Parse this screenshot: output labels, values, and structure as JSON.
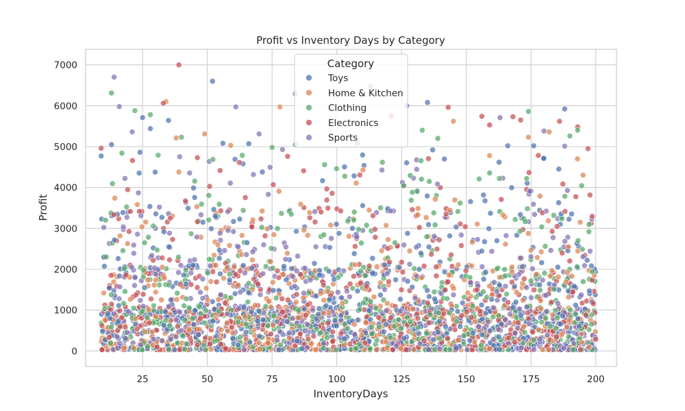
{
  "chart_data": {
    "type": "scatter",
    "title": "Profit vs Inventory Days by Category",
    "xlabel": "InventoryDays",
    "ylabel": "Profit",
    "xlim": [
      3,
      208
    ],
    "ylim": [
      -380,
      7380
    ],
    "x_ticks": [
      25,
      50,
      75,
      100,
      125,
      150,
      175,
      200
    ],
    "y_ticks": [
      0,
      1000,
      2000,
      3000,
      4000,
      5000,
      6000,
      7000
    ],
    "grid": true,
    "legend_title": "Category",
    "legend_position": "top-center",
    "series": [
      {
        "name": "Toys",
        "color": "#4c72b0"
      },
      {
        "name": "Home & Kitchen",
        "color": "#dd8452"
      },
      {
        "name": "Clothing",
        "color": "#55a868"
      },
      {
        "name": "Electronics",
        "color": "#c44e52"
      },
      {
        "name": "Sports",
        "color": "#8172b3"
      }
    ],
    "highlight_points": [
      {
        "series": "Electronics",
        "x": 39,
        "y": 7000
      },
      {
        "series": "Sports",
        "x": 14,
        "y": 6700
      },
      {
        "series": "Toys",
        "x": 52,
        "y": 6600
      },
      {
        "series": "Sports",
        "x": 113,
        "y": 6470
      },
      {
        "series": "Clothing",
        "x": 13,
        "y": 6310
      },
      {
        "series": "Sports",
        "x": 84,
        "y": 6290
      },
      {
        "series": "Home & Kitchen",
        "x": 34,
        "y": 6100
      },
      {
        "series": "Toys",
        "x": 135,
        "y": 6080
      },
      {
        "series": "Electronics",
        "x": 33,
        "y": 6060
      },
      {
        "series": "Toys",
        "x": 127,
        "y": 6000
      },
      {
        "series": "Sports",
        "x": 16,
        "y": 5980
      },
      {
        "series": "Home & Kitchen",
        "x": 78,
        "y": 5970
      },
      {
        "series": "Sports",
        "x": 61,
        "y": 5970
      },
      {
        "series": "Electronics",
        "x": 143,
        "y": 5960
      },
      {
        "series": "Toys",
        "x": 188,
        "y": 5920
      },
      {
        "series": "Clothing",
        "x": 22,
        "y": 5880
      },
      {
        "series": "Clothing",
        "x": 174,
        "y": 5860
      },
      {
        "series": "Clothing",
        "x": 28,
        "y": 5780
      },
      {
        "series": "Electronics",
        "x": 156,
        "y": 5740
      },
      {
        "series": "Electronics",
        "x": 121,
        "y": 5740
      },
      {
        "series": "Electronics",
        "x": 168,
        "y": 5730
      },
      {
        "series": "Sports",
        "x": 163,
        "y": 5710
      },
      {
        "series": "Toys",
        "x": 25,
        "y": 5710
      },
      {
        "series": "Electronics",
        "x": 171,
        "y": 5650
      },
      {
        "series": "Toys",
        "x": 35,
        "y": 5640
      },
      {
        "series": "Home & Kitchen",
        "x": 145,
        "y": 5620
      },
      {
        "series": "Electronics",
        "x": 186,
        "y": 5620
      },
      {
        "series": "Electronics",
        "x": 159,
        "y": 5530
      },
      {
        "series": "Electronics",
        "x": 193,
        "y": 5480
      },
      {
        "series": "Toys",
        "x": 28,
        "y": 5440
      },
      {
        "series": "Sports",
        "x": 180,
        "y": 5380
      },
      {
        "series": "Clothing",
        "x": 193,
        "y": 5400
      },
      {
        "series": "Clothing",
        "x": 133,
        "y": 5400
      },
      {
        "series": "Sports",
        "x": 21,
        "y": 5360
      },
      {
        "series": "Home & Kitchen",
        "x": 182,
        "y": 5360
      },
      {
        "series": "Sports",
        "x": 70,
        "y": 5310
      },
      {
        "series": "Home & Kitchen",
        "x": 49,
        "y": 5310
      },
      {
        "series": "Home & Kitchen",
        "x": 174,
        "y": 5230
      },
      {
        "series": "Clothing",
        "x": 40,
        "y": 5230
      },
      {
        "series": "Home & Kitchen",
        "x": 38,
        "y": 5210
      },
      {
        "series": "Clothing",
        "x": 190,
        "y": 5260
      },
      {
        "series": "Clothing",
        "x": 139,
        "y": 5200
      },
      {
        "series": "Toys",
        "x": 56,
        "y": 5080
      },
      {
        "series": "Toys",
        "x": 66,
        "y": 5070
      },
      {
        "series": "Toys",
        "x": 13,
        "y": 5050
      },
      {
        "series": "Toys",
        "x": 108,
        "y": 5080
      },
      {
        "series": "Home & Kitchen",
        "x": 59,
        "y": 5030
      },
      {
        "series": "Toys",
        "x": 166,
        "y": 5020
      },
      {
        "series": "Toys",
        "x": 176,
        "y": 5020
      },
      {
        "series": "Clothing",
        "x": 84,
        "y": 5050
      },
      {
        "series": "Sports",
        "x": 188,
        "y": 5010
      },
      {
        "series": "Electronics",
        "x": 9,
        "y": 4960
      },
      {
        "series": "Clothing",
        "x": 75,
        "y": 4980
      },
      {
        "series": "Sports",
        "x": 79,
        "y": 4930
      },
      {
        "series": "Toys",
        "x": 137,
        "y": 4920
      },
      {
        "series": "Toys",
        "x": 24,
        "y": 4860
      },
      {
        "series": "Clothing",
        "x": 17,
        "y": 4840
      },
      {
        "series": "Electronics",
        "x": 197,
        "y": 4950
      },
      {
        "series": "Toys",
        "x": 9,
        "y": 4770
      },
      {
        "series": "Clothing",
        "x": 31,
        "y": 4790
      },
      {
        "series": "Home & Kitchen",
        "x": 159,
        "y": 4780
      },
      {
        "series": "Electronics",
        "x": 81,
        "y": 4760
      }
    ],
    "dense_cloud": {
      "x_range": [
        9,
        200
      ],
      "y_range": [
        0,
        4800
      ],
      "note": "dense overlapping scatter of all five categories concentrated below 2000"
    }
  }
}
